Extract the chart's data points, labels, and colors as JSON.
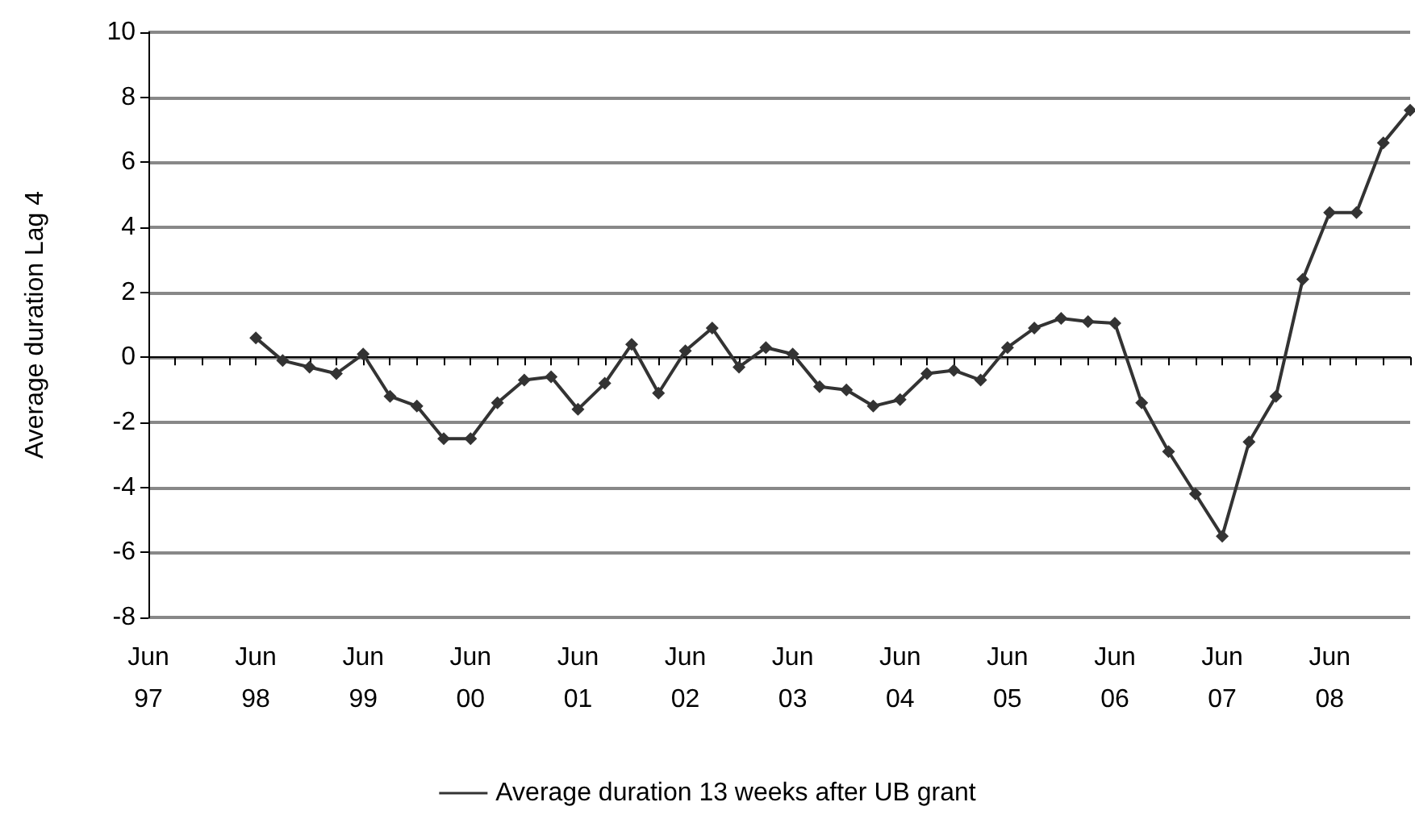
{
  "chart_data": {
    "type": "line",
    "ylabel": "Average duration Lag 4",
    "categories": [
      "Jun\n97",
      null,
      null,
      null,
      "Jun\n98",
      null,
      null,
      null,
      "Jun\n99",
      null,
      null,
      null,
      "Jun\n00",
      null,
      null,
      null,
      "Jun\n01",
      null,
      null,
      null,
      "Jun\n02",
      null,
      null,
      null,
      "Jun\n03",
      null,
      null,
      null,
      "Jun\n04",
      null,
      null,
      null,
      "Jun\n05",
      null,
      null,
      null,
      "Jun\n06",
      null,
      null,
      null,
      "Jun\n07",
      null,
      null,
      null,
      "Jun\n08",
      null,
      null,
      null
    ],
    "series": [
      {
        "name": "Average duration 13 weeks after UB grant",
        "color": "#333333",
        "values": [
          null,
          null,
          null,
          null,
          0.6,
          -0.1,
          -0.3,
          -0.5,
          0.1,
          -1.2,
          -1.5,
          -2.5,
          -2.5,
          -1.4,
          -0.7,
          -0.6,
          -1.6,
          -0.8,
          0.4,
          -1.1,
          0.2,
          0.9,
          -0.3,
          0.3,
          0.1,
          -0.9,
          -1.0,
          -1.5,
          -1.3,
          -0.5,
          -0.4,
          -0.7,
          0.3,
          0.9,
          1.2,
          1.1,
          1.05,
          -1.4,
          -2.9,
          -4.2,
          -5.5,
          -2.6,
          -1.2,
          2.4,
          4.45,
          4.45,
          6.6,
          7.6
        ]
      }
    ],
    "ylim": [
      -8,
      10
    ],
    "yticks": [
      -8,
      -6,
      -4,
      -2,
      0,
      2,
      4,
      6,
      8,
      10
    ],
    "grid": "y",
    "legend": "bottom",
    "marker": "diamond",
    "line_style": "solid"
  }
}
